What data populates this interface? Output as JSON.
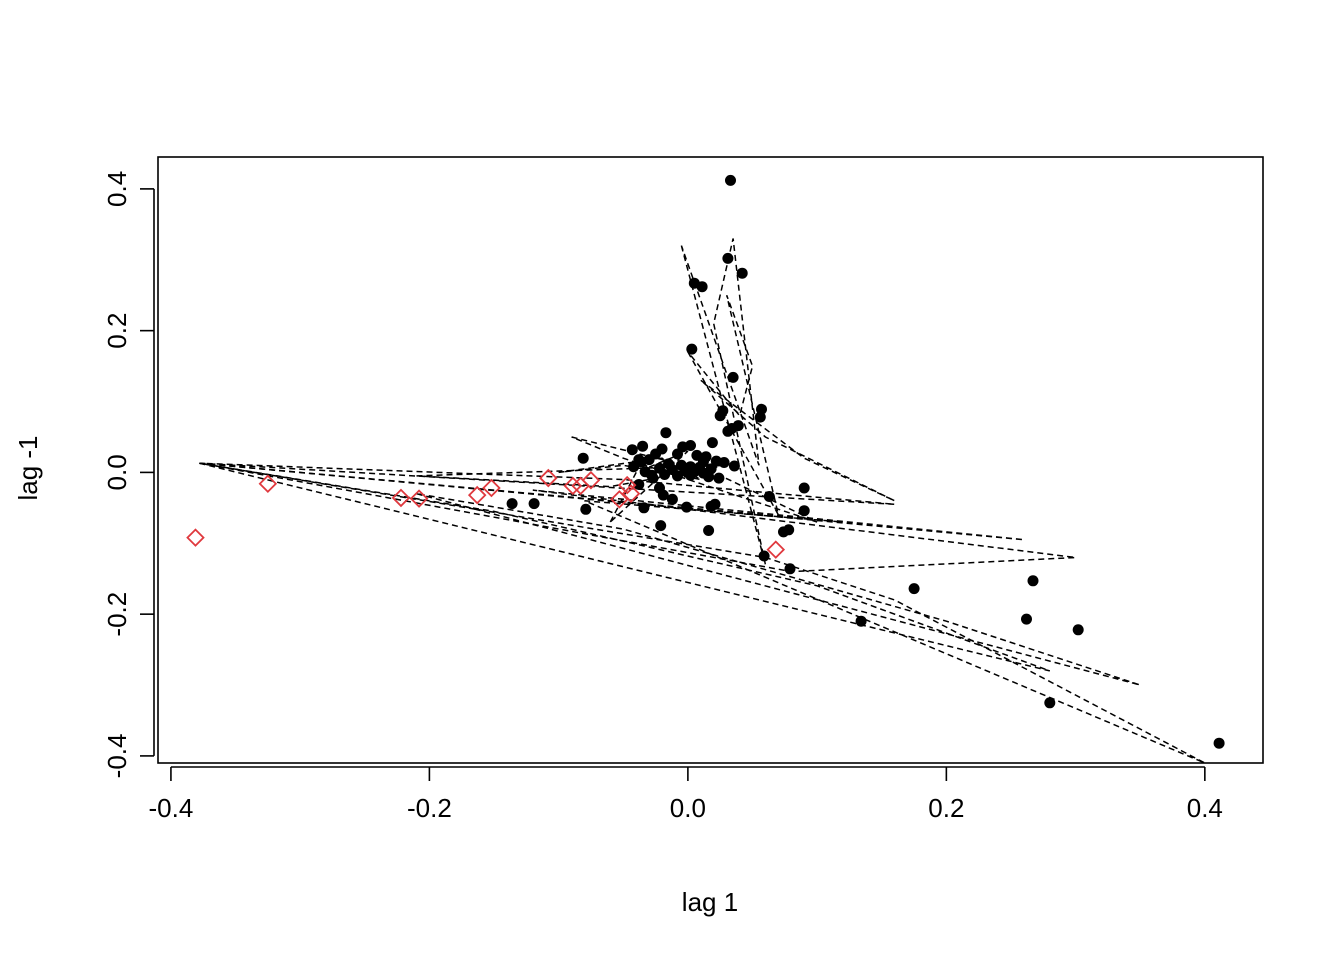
{
  "chart_data": {
    "type": "scatter",
    "title": "",
    "xlabel": "lag 1",
    "ylabel": "lag -1",
    "xlim": [
      -0.41,
      0.445
    ],
    "ylim": [
      -0.41,
      0.445
    ],
    "x_ticks": [
      -0.4,
      -0.2,
      0.0,
      0.2,
      0.4
    ],
    "x_tick_labels": [
      "-0.4",
      "-0.2",
      "0.0",
      "0.2",
      "0.4"
    ],
    "y_ticks": [
      -0.4,
      -0.2,
      0.0,
      0.2,
      0.4
    ],
    "y_tick_labels": [
      "-0.4",
      "-0.2",
      "0.0",
      "0.2",
      "0.4"
    ],
    "grid": false,
    "colors": {
      "points": "#000000",
      "highlight": "#e0393e",
      "lines": "#000000"
    },
    "series": [
      {
        "marker": "filled-circle",
        "color": "#000000",
        "points": [
          [
            0.033,
            0.412
          ],
          [
            0.031,
            0.302
          ],
          [
            0.042,
            0.281
          ],
          [
            0.005,
            0.267
          ],
          [
            0.011,
            0.262
          ],
          [
            0.003,
            0.174
          ],
          [
            0.035,
            0.134
          ],
          [
            0.057,
            0.089
          ],
          [
            0.056,
            0.078
          ],
          [
            0.027,
            0.087
          ],
          [
            0.025,
            0.08
          ],
          [
            0.039,
            0.066
          ],
          [
            0.034,
            0.062
          ],
          [
            0.031,
            0.058
          ],
          [
            -0.017,
            0.056
          ],
          [
            -0.035,
            0.037
          ],
          [
            -0.004,
            0.036
          ],
          [
            0.002,
            0.038
          ],
          [
            0.019,
            0.042
          ],
          [
            -0.02,
            0.033
          ],
          [
            -0.043,
            0.032
          ],
          [
            -0.025,
            0.026
          ],
          [
            -0.008,
            0.026
          ],
          [
            0.007,
            0.024
          ],
          [
            0.014,
            0.022
          ],
          [
            -0.03,
            0.018
          ],
          [
            -0.038,
            0.018
          ],
          [
            0.012,
            0.015
          ],
          [
            0.022,
            0.016
          ],
          [
            0.028,
            0.014
          ],
          [
            -0.015,
            0.012
          ],
          [
            -0.005,
            0.01
          ],
          [
            0.002,
            0.008
          ],
          [
            0.009,
            0.007
          ],
          [
            0.018,
            0.005
          ],
          [
            -0.022,
            0.006
          ],
          [
            -0.012,
            0.004
          ],
          [
            -0.002,
            0.002
          ],
          [
            0.005,
            0.001
          ],
          [
            0.012,
            -0.001
          ],
          [
            -0.033,
            0.001
          ],
          [
            -0.028,
            -0.004
          ],
          [
            -0.018,
            -0.003
          ],
          [
            -0.008,
            -0.005
          ],
          [
            0.002,
            -0.004
          ],
          [
            0.016,
            -0.006
          ],
          [
            0.024,
            -0.008
          ],
          [
            -0.042,
            0.008
          ],
          [
            0.036,
            0.009
          ],
          [
            -0.036,
            0.015
          ],
          [
            -0.081,
            0.02
          ],
          [
            -0.022,
            -0.022
          ],
          [
            -0.019,
            -0.032
          ],
          [
            -0.038,
            -0.017
          ],
          [
            -0.027,
            -0.008
          ],
          [
            0.021,
            -0.045
          ],
          [
            0.018,
            -0.048
          ],
          [
            -0.012,
            -0.038
          ],
          [
            -0.001,
            -0.049
          ],
          [
            -0.034,
            -0.05
          ],
          [
            -0.079,
            -0.052
          ],
          [
            -0.119,
            -0.044
          ],
          [
            -0.136,
            -0.044
          ],
          [
            -0.021,
            -0.075
          ],
          [
            0.016,
            -0.082
          ],
          [
            0.063,
            -0.034
          ],
          [
            0.09,
            -0.022
          ],
          [
            0.09,
            -0.054
          ],
          [
            0.078,
            -0.081
          ],
          [
            0.074,
            -0.084
          ],
          [
            0.059,
            -0.118
          ],
          [
            0.079,
            -0.136
          ],
          [
            0.175,
            -0.164
          ],
          [
            0.267,
            -0.153
          ],
          [
            0.262,
            -0.207
          ],
          [
            0.134,
            -0.21
          ],
          [
            0.302,
            -0.222
          ],
          [
            0.28,
            -0.325
          ],
          [
            0.411,
            -0.382
          ]
        ]
      },
      {
        "marker": "open-diamond",
        "color": "#e0393e",
        "points": [
          [
            -0.381,
            -0.092
          ],
          [
            -0.325,
            -0.016
          ],
          [
            -0.222,
            -0.036
          ],
          [
            -0.208,
            -0.037
          ],
          [
            -0.163,
            -0.032
          ],
          [
            -0.152,
            -0.022
          ],
          [
            -0.108,
            -0.008
          ],
          [
            -0.089,
            -0.019
          ],
          [
            -0.083,
            -0.019
          ],
          [
            -0.075,
            -0.011
          ],
          [
            -0.053,
            -0.038
          ],
          [
            -0.047,
            -0.018
          ],
          [
            -0.044,
            -0.03
          ],
          [
            0.068,
            -0.109
          ]
        ]
      }
    ],
    "dashed_lines": [
      [
        [
          -0.378,
          0.013
        ],
        [
          0.16,
          -0.045
        ],
        [
          -0.05,
          -0.01
        ],
        [
          -0.378,
          0.013
        ]
      ],
      [
        [
          -0.378,
          0.013
        ],
        [
          0.26,
          -0.095
        ],
        [
          -0.12,
          -0.025
        ],
        [
          0.3,
          -0.12
        ],
        [
          0.08,
          -0.14
        ],
        [
          -0.378,
          0.013
        ]
      ],
      [
        [
          -0.378,
          0.013
        ],
        [
          0.12,
          -0.07
        ],
        [
          -0.08,
          -0.04
        ],
        [
          0.4,
          -0.41
        ],
        [
          0.16,
          -0.18
        ],
        [
          0.06,
          -0.12
        ],
        [
          -0.378,
          0.013
        ]
      ],
      [
        [
          -0.378,
          0.013
        ],
        [
          0.28,
          -0.28
        ],
        [
          0.1,
          -0.16
        ],
        [
          -0.15,
          -0.055
        ],
        [
          -0.378,
          0.013
        ]
      ],
      [
        [
          -0.21,
          -0.03
        ],
        [
          0.35,
          -0.3
        ],
        [
          0.2,
          -0.21
        ],
        [
          -0.05,
          -0.08
        ],
        [
          -0.21,
          -0.03
        ]
      ],
      [
        [
          -0.005,
          0.32
        ],
        [
          0.06,
          -0.13
        ],
        [
          0.02,
          0.21
        ],
        [
          0.035,
          0.33
        ],
        [
          0.055,
          0.01
        ],
        [
          -0.005,
          0.32
        ]
      ],
      [
        [
          0.0,
          0.17
        ],
        [
          0.07,
          -0.06
        ],
        [
          0.03,
          0.25
        ],
        [
          0.05,
          0.15
        ],
        [
          0.04,
          0.08
        ],
        [
          0.0,
          0.17
        ]
      ],
      [
        [
          0.01,
          0.13
        ],
        [
          0.09,
          0.02
        ],
        [
          0.16,
          -0.04
        ],
        [
          0.06,
          0.05
        ],
        [
          0.01,
          0.13
        ]
      ],
      [
        [
          -0.09,
          0.05
        ],
        [
          0.02,
          0.0
        ],
        [
          0.1,
          -0.07
        ],
        [
          -0.05,
          0.02
        ],
        [
          -0.09,
          0.05
        ]
      ],
      [
        [
          -0.21,
          -0.005
        ],
        [
          0.03,
          0.01
        ],
        [
          -0.06,
          -0.02
        ],
        [
          -0.21,
          -0.005
        ]
      ],
      [
        [
          -0.1,
          0.0
        ],
        [
          -0.02,
          0.02
        ],
        [
          0.01,
          -0.01
        ],
        [
          -0.05,
          0.01
        ],
        [
          -0.1,
          0.0
        ]
      ],
      [
        [
          -0.06,
          -0.07
        ],
        [
          -0.04,
          0.0
        ],
        [
          0.0,
          0.03
        ],
        [
          -0.06,
          -0.07
        ]
      ]
    ]
  }
}
